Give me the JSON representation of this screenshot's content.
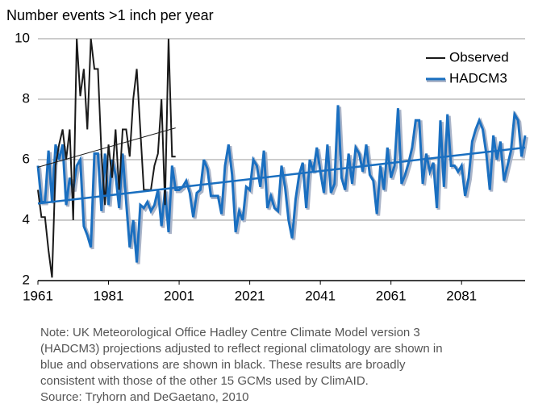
{
  "chart_data": {
    "type": "line",
    "title": "Number events >1 inch per year",
    "xlim": [
      1961,
      2099
    ],
    "xticks": [
      1961,
      1981,
      2001,
      2021,
      2041,
      2061,
      2081
    ],
    "ylim": [
      2,
      10
    ],
    "yticks": [
      2,
      4,
      6,
      8,
      10
    ],
    "grid": true,
    "legend": "upper right",
    "series": [
      {
        "name": "Observed",
        "color": "#1a1a1a",
        "x": [
          1961,
          1962,
          1963,
          1964,
          1965,
          1966,
          1967,
          1968,
          1969,
          1970,
          1971,
          1972,
          1973,
          1974,
          1975,
          1976,
          1977,
          1978,
          1979,
          1980,
          1981,
          1982,
          1983,
          1984,
          1985,
          1986,
          1987,
          1988,
          1989,
          1990,
          1991,
          1992,
          1993,
          1994,
          1995,
          1996,
          1997,
          1998,
          1999,
          2000
        ],
        "values": [
          5,
          4.1,
          4.1,
          3,
          2.1,
          5.8,
          6.5,
          7,
          6,
          7,
          4,
          10,
          8.1,
          9,
          7,
          10,
          9,
          9,
          6.2,
          4.5,
          6.5,
          5.4,
          7,
          5,
          7,
          7,
          6.1,
          8,
          9,
          7,
          5,
          5,
          5,
          5.8,
          6.2,
          8,
          4.5,
          10,
          6.1,
          6.1
        ]
      },
      {
        "name": "HADCM3",
        "color": "#1a6fc0",
        "x": [
          1961,
          1962,
          1963,
          1964,
          1965,
          1966,
          1967,
          1968,
          1969,
          1970,
          1971,
          1972,
          1973,
          1974,
          1975,
          1976,
          1977,
          1978,
          1979,
          1980,
          1981,
          1982,
          1983,
          1984,
          1985,
          1986,
          1987,
          1988,
          1989,
          1990,
          1991,
          1992,
          1993,
          1994,
          1995,
          1996,
          1997,
          1998,
          1999,
          2000,
          2001,
          2002,
          2003,
          2004,
          2005,
          2006,
          2007,
          2008,
          2009,
          2010,
          2011,
          2012,
          2013,
          2014,
          2015,
          2016,
          2017,
          2018,
          2019,
          2020,
          2021,
          2022,
          2023,
          2024,
          2025,
          2026,
          2027,
          2028,
          2029,
          2030,
          2031,
          2032,
          2033,
          2034,
          2035,
          2036,
          2037,
          2038,
          2039,
          2040,
          2041,
          2042,
          2043,
          2044,
          2045,
          2046,
          2047,
          2048,
          2049,
          2050,
          2051,
          2052,
          2053,
          2054,
          2055,
          2056,
          2057,
          2058,
          2059,
          2060,
          2061,
          2062,
          2063,
          2064,
          2065,
          2066,
          2067,
          2068,
          2069,
          2070,
          2071,
          2072,
          2073,
          2074,
          2075,
          2076,
          2077,
          2078,
          2079,
          2080,
          2081,
          2082,
          2083,
          2084,
          2085,
          2086,
          2087,
          2088,
          2089,
          2090,
          2091,
          2092,
          2093,
          2094,
          2095,
          2096,
          2097,
          2098,
          2099
        ],
        "values": [
          5.8,
          4.6,
          4.6,
          6.3,
          4.6,
          6.5,
          6.0,
          6.5,
          4.5,
          5.4,
          5.0,
          5.8,
          6.0,
          3.8,
          3.5,
          3.1,
          6.2,
          6.2,
          4.3,
          6.2,
          4.5,
          6.0,
          5.5,
          4.4,
          6.2,
          4.6,
          3.1,
          4.0,
          2.6,
          4.5,
          4.4,
          4.6,
          4.3,
          4.5,
          5.0,
          3.8,
          5.0,
          3.6,
          5.8,
          5.0,
          5.0,
          5.1,
          5.3,
          4.9,
          4.1,
          4.9,
          5.0,
          6.0,
          5.7,
          4.8,
          4.8,
          4.8,
          4.2,
          5.8,
          6.5,
          5.5,
          3.6,
          4.3,
          4.0,
          5.1,
          5.0,
          6.0,
          5.8,
          5.1,
          6.3,
          4.4,
          4.8,
          4.4,
          4.3,
          5.8,
          5.1,
          4.0,
          3.4,
          4.7,
          5.5,
          5.9,
          4.4,
          6.0,
          5.6,
          6.4,
          5.6,
          4.9,
          6.5,
          4.9,
          5.2,
          7.8,
          5.4,
          5.0,
          6.2,
          5.2,
          6.4,
          6.2,
          5.6,
          6.5,
          5.5,
          5.3,
          4.2,
          5.8,
          5.0,
          6.4,
          5.4,
          5.8,
          7.7,
          5.2,
          5.5,
          5.9,
          6.4,
          7.3,
          7.3,
          5.2,
          6.2,
          5.6,
          5.9,
          4.4,
          7.3,
          5.1,
          7.5,
          5.8,
          5.8,
          5.6,
          5.8,
          4.8,
          5.4,
          6.6,
          7.0,
          7.3,
          7.0,
          6.2,
          5.0,
          6.8,
          6.0,
          6.6,
          5.3,
          5.8,
          6.3,
          7.5,
          7.3,
          6.1,
          6.8
        ]
      }
    ],
    "trend_lines": [
      {
        "color": "#1a1a1a",
        "x": [
          1961,
          2000
        ],
        "values": [
          5.75,
          7.05
        ]
      },
      {
        "color": "#1a6fc0",
        "x": [
          1961,
          2099
        ],
        "values": [
          4.55,
          6.4
        ]
      }
    ],
    "note": [
      "Note: UK Meteorological Office Hadley Centre Climate Model version 3",
      "(HADCM3) projections adjusted to reflect regional climatology are shown in",
      "blue and observations are shown in black. These results are broadly",
      "consistent with those of the other 15 GCMs used by ClimAID.",
      "Source: Tryhorn and DeGaetano, 2010"
    ]
  }
}
